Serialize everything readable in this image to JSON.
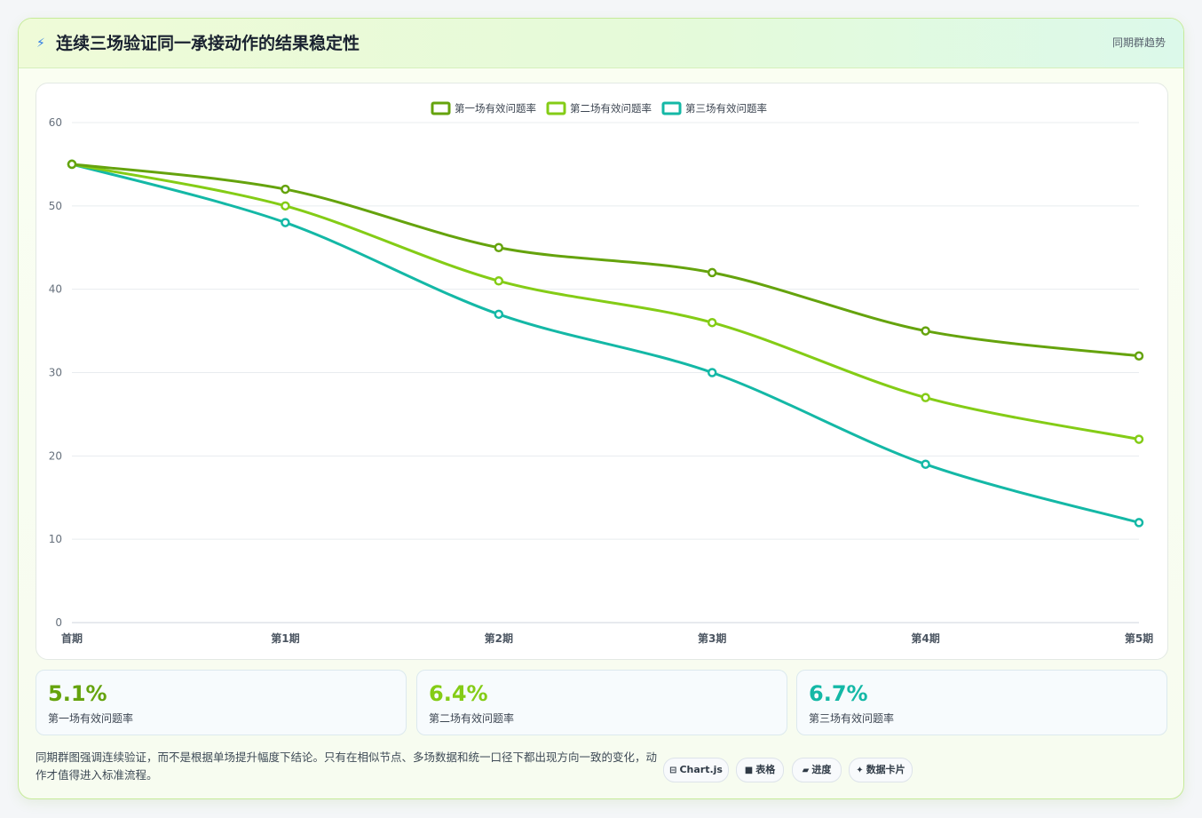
{
  "header": {
    "icon": "lightning-icon",
    "title": "连续三场验证同一承接动作的结果稳定性",
    "link_label": "同期群趋势"
  },
  "chart_data": {
    "type": "line",
    "title": "",
    "xlabel": "",
    "ylabel": "",
    "categories": [
      "首期",
      "第1期",
      "第2期",
      "第3期",
      "第4期",
      "第5期"
    ],
    "ylim": [
      0,
      60
    ],
    "yticks": [
      0,
      10,
      20,
      30,
      40,
      50,
      60
    ],
    "grid": true,
    "legend": "top-center",
    "series": [
      {
        "name": "第一场有效问题率",
        "color": "#65a30d",
        "values": [
          55,
          52,
          45,
          42,
          35,
          32
        ]
      },
      {
        "name": "第二场有效问题率",
        "color": "#84cc16",
        "values": [
          55,
          50,
          41,
          36,
          27,
          22
        ]
      },
      {
        "name": "第三场有效问题率",
        "color": "#14b8a6",
        "values": [
          55,
          48,
          37,
          30,
          19,
          12
        ]
      }
    ]
  },
  "stats": [
    {
      "value": "5.1%",
      "label": "第一场有效问题率",
      "color": "#65a30d"
    },
    {
      "value": "6.4%",
      "label": "第二场有效问题率",
      "color": "#84cc16"
    },
    {
      "value": "6.7%",
      "label": "第三场有效问题率",
      "color": "#14b8a6"
    }
  ],
  "footnote": "同期群图强调连续验证，而不是根据单场提升幅度下结论。只有在相似节点、多场数据和统一口径下都出现方向一致的变化，动作才值得进入标准流程。",
  "tags": [
    {
      "icon": "chart-icon",
      "glyph": "⊟",
      "label": "Chart.js"
    },
    {
      "icon": "table-icon",
      "glyph": "■",
      "label": "表格"
    },
    {
      "icon": "progress-icon",
      "glyph": "▰",
      "label": "进度"
    },
    {
      "icon": "sparkle-icon",
      "glyph": "✦",
      "label": "数据卡片"
    }
  ]
}
